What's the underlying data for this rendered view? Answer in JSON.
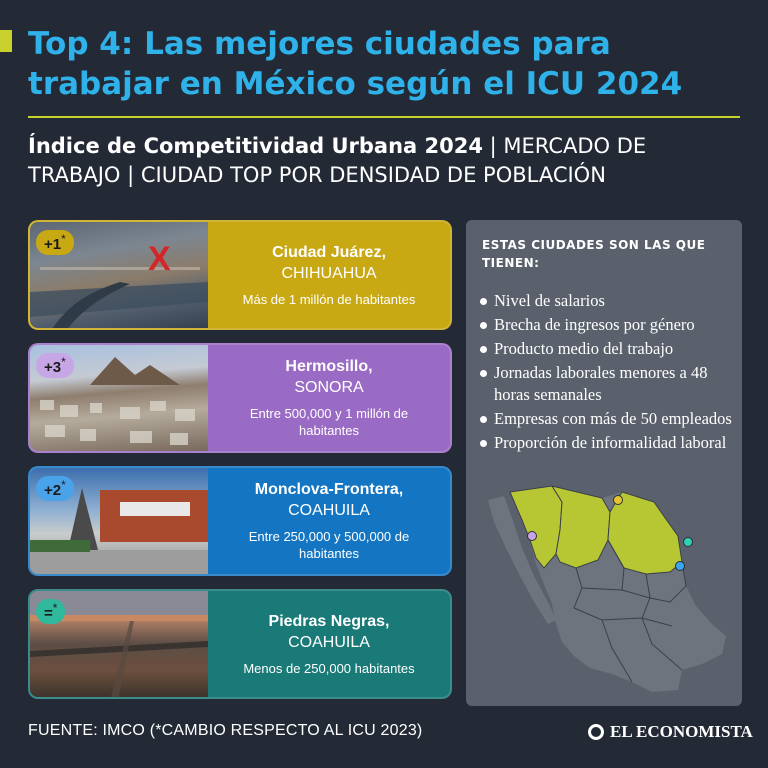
{
  "header": {
    "title": "Top 4: Las mejores ciudades para trabajar en México según el ICU 2024",
    "subtitle_bold": "Índice de Competitividad Urbana 2024",
    "subtitle_rest": " | MERCADO DE TRABAJO | CIUDAD TOP POR DENSIDAD DE POBLACIÓN"
  },
  "cards": [
    {
      "badge": "+1",
      "badge_mark": "*",
      "city": "Ciudad Juárez,",
      "state": "CHIHUAHUA",
      "population": "Más de 1 millón de habitantes"
    },
    {
      "badge": "+3",
      "badge_mark": "*",
      "city": "Hermosillo,",
      "state": "SONORA",
      "population": "Entre 500,000 y 1 millón de habitantes"
    },
    {
      "badge": "+2",
      "badge_mark": "*",
      "city": "Monclova-Frontera,",
      "state": "COAHUILA",
      "population": "Entre 250,000 y 500,000 de habitantes"
    },
    {
      "badge": "=",
      "badge_mark": "*",
      "city": "Piedras Negras,",
      "state": "COAHUILA",
      "population": "Menos de 250,000 habitantes"
    }
  ],
  "panel": {
    "heading": "ESTAS CIUDADES SON LAS QUE TIENEN:",
    "items": [
      "Nivel de salarios",
      "Brecha de ingresos por género",
      "Producto medio del trabajo",
      "Jornadas laborales menores a 48 horas semanales",
      "Empresas con más de 50 empleados",
      "Proporción de informalidad laboral"
    ]
  },
  "map": {
    "highlight_color": "#b7c734",
    "base_color": "#6e747e",
    "markers": [
      {
        "city": "Ciudad Juárez",
        "color": "#e6c42a"
      },
      {
        "city": "Hermosillo",
        "color": "#c7a3e6"
      },
      {
        "city": "Monclova-Frontera",
        "color": "#3ba6f2"
      },
      {
        "city": "Piedras Negras",
        "color": "#2fd1b1"
      }
    ]
  },
  "footer": {
    "source": "FUENTE: IMCO (*CAMBIO RESPECTO AL ICU 2023)",
    "logo": "EL ECONOMISTA"
  },
  "colors": {
    "background": "#232a36",
    "title": "#2fb2ea",
    "accent": "#c9d22c"
  }
}
